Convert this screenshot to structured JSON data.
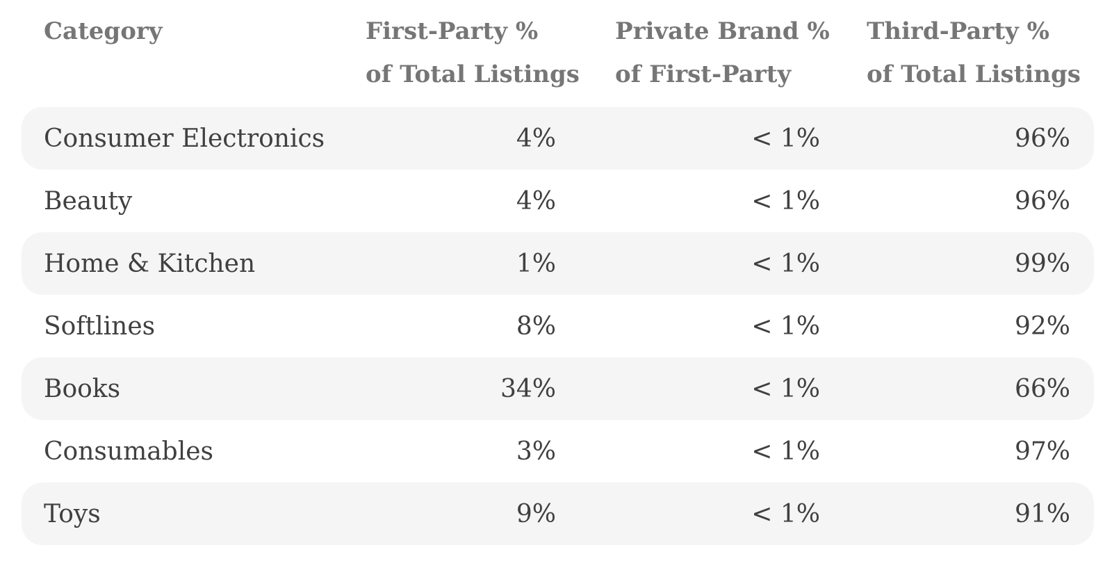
{
  "colors": {
    "background": "#ffffff",
    "row_stripe": "#f5f5f5",
    "header_text": "#767676",
    "body_text": "#404040"
  },
  "chart_data": {
    "type": "table",
    "title": "",
    "columns": [
      {
        "line1": "Category",
        "line2": ""
      },
      {
        "line1": "First-Party %",
        "line2": "of Total Listings"
      },
      {
        "line1": "Private Brand %",
        "line2": "of First-Party"
      },
      {
        "line1": "Third-Party %",
        "line2": "of Total Listings"
      }
    ],
    "rows": [
      {
        "cells": [
          "Consumer Electronics",
          "4%",
          "< 1%",
          "96%"
        ]
      },
      {
        "cells": [
          "Beauty",
          "4%",
          "< 1%",
          "96%"
        ]
      },
      {
        "cells": [
          "Home & Kitchen",
          "1%",
          "< 1%",
          "99%"
        ]
      },
      {
        "cells": [
          "Softlines",
          "8%",
          "< 1%",
          "92%"
        ]
      },
      {
        "cells": [
          "Books",
          "34%",
          "< 1%",
          "66%"
        ]
      },
      {
        "cells": [
          "Consumables",
          "3%",
          "< 1%",
          "97%"
        ]
      },
      {
        "cells": [
          "Toys",
          "9%",
          "< 1%",
          "91%"
        ]
      }
    ]
  }
}
